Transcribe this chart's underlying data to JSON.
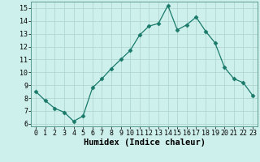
{
  "x": [
    0,
    1,
    2,
    3,
    4,
    5,
    6,
    7,
    8,
    9,
    10,
    11,
    12,
    13,
    14,
    15,
    16,
    17,
    18,
    19,
    20,
    21,
    22,
    23
  ],
  "y": [
    8.5,
    7.8,
    7.2,
    6.9,
    6.2,
    6.6,
    8.8,
    9.5,
    10.3,
    11.0,
    11.7,
    12.9,
    13.6,
    13.8,
    15.2,
    13.3,
    13.7,
    14.3,
    13.2,
    12.3,
    10.4,
    9.5,
    9.2,
    8.2
  ],
  "line_color": "#1a7a6a",
  "marker": "D",
  "marker_size": 2.5,
  "bg_color": "#cef0ec",
  "grid_color": "#b0d8d2",
  "xlabel": "Humidex (Indice chaleur)",
  "xlabel_fontsize": 7.5,
  "tick_fontsize": 6,
  "ylim": [
    5.8,
    15.5
  ],
  "xlim": [
    -0.5,
    23.5
  ],
  "yticks": [
    6,
    7,
    8,
    9,
    10,
    11,
    12,
    13,
    14,
    15
  ],
  "xticks": [
    0,
    1,
    2,
    3,
    4,
    5,
    6,
    7,
    8,
    9,
    10,
    11,
    12,
    13,
    14,
    15,
    16,
    17,
    18,
    19,
    20,
    21,
    22,
    23
  ]
}
